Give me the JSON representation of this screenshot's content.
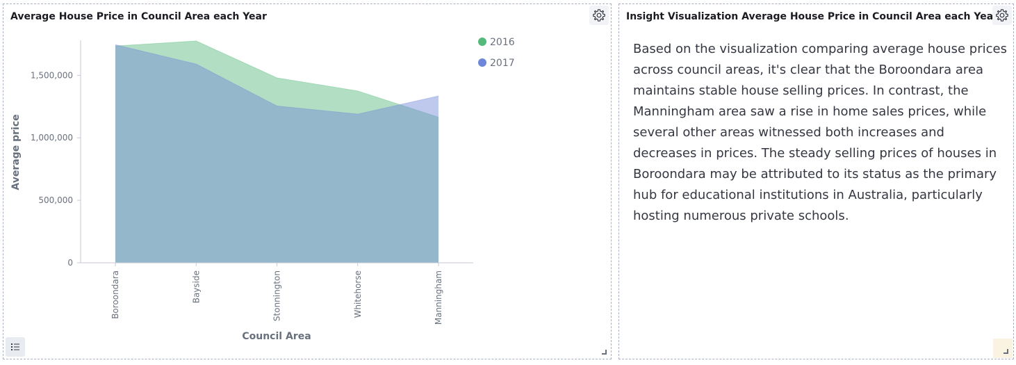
{
  "chart_panel": {
    "title": "Average House Price in Council Area each Year",
    "gear_icon": "gear-icon",
    "legend_toggle_icon": "list-icon"
  },
  "insight_panel": {
    "title": "Insight Visualization Average House Price in Council Area each Year",
    "gear_icon": "gear-icon",
    "text": "Based on the visualization comparing average house prices across council areas, it's clear that the Boroondara area maintains stable house selling prices. In contrast, the Manningham area saw a rise in home sales prices, while several other areas witnessed both increases and decreases in prices. The steady selling prices of houses in Boroondara may be attributed to its status as the primary hub for educational institutions in Australia, particularly hosting numerous private schools."
  },
  "chart_data": {
    "type": "area",
    "title": "Average House Price in Council Area each Year",
    "xlabel": "Council Area",
    "ylabel": "Average price",
    "categories": [
      "Boroondara",
      "Bayside",
      "Stonnington",
      "Whitehorse",
      "Manningham"
    ],
    "series": [
      {
        "name": "2016",
        "color": "#54b97a",
        "values": [
          1735000,
          1775000,
          1480000,
          1375000,
          1165000
        ]
      },
      {
        "name": "2017",
        "color": "#6f87d8",
        "values": [
          1745000,
          1590000,
          1255000,
          1190000,
          1335000
        ]
      }
    ],
    "ylim": [
      0,
      1780000
    ],
    "yticks": [
      0,
      500000,
      1000000,
      1500000
    ],
    "ytick_labels": [
      "0",
      "500,000",
      "1,000,000",
      "1,500,000"
    ],
    "legend_position": "top-right",
    "grid": false
  }
}
